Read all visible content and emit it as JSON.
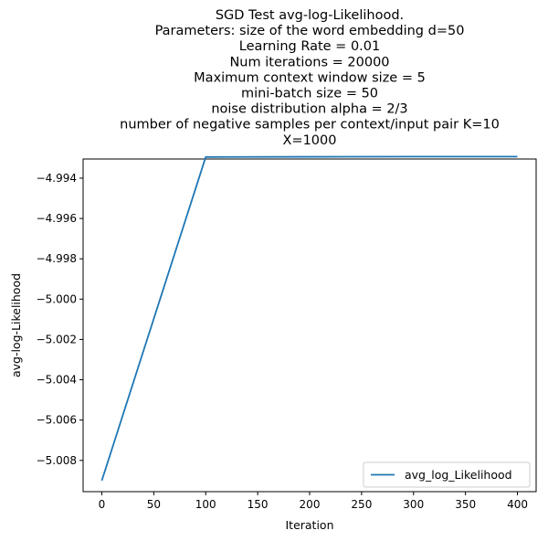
{
  "chart_data": {
    "type": "line",
    "title_lines": [
      "SGD Test avg-log-Likelihood.",
      "Parameters: size of the word embedding d=50",
      "Learning Rate = 0.01",
      "Num iterations = 20000",
      "Maximum context window size = 5",
      "mini-batch size = 50",
      "noise distribution alpha = 2/3",
      "number of negative samples per context/input pair K=10",
      "X=1000"
    ],
    "xlabel": "Iteration",
    "ylabel": "avg-log-Likelihood",
    "xlim": [
      -18,
      418
    ],
    "ylim": [
      -5.00955,
      -4.99305
    ],
    "x_ticks": [
      0,
      50,
      100,
      150,
      200,
      250,
      300,
      350,
      400
    ],
    "x_tick_labels": [
      "0",
      "50",
      "100",
      "150",
      "200",
      "250",
      "300",
      "350",
      "400"
    ],
    "y_ticks": [
      -5.008,
      -5.006,
      -5.004,
      -5.002,
      -5.0,
      -4.998,
      -4.996,
      -4.994
    ],
    "y_tick_labels": [
      "−5.008",
      "−5.006",
      "−5.004",
      "−5.002",
      "−5.000",
      "−4.998",
      "−4.996",
      "−4.994"
    ],
    "grid": false,
    "legend_position": "lower-right",
    "series": [
      {
        "name": "avg_log_Likelihood",
        "color": "#1f77b4",
        "x": [
          0,
          100,
          200,
          300,
          400
        ],
        "y": [
          -5.009,
          -4.99295,
          -4.99294,
          -4.99293,
          -4.99293
        ]
      }
    ]
  }
}
